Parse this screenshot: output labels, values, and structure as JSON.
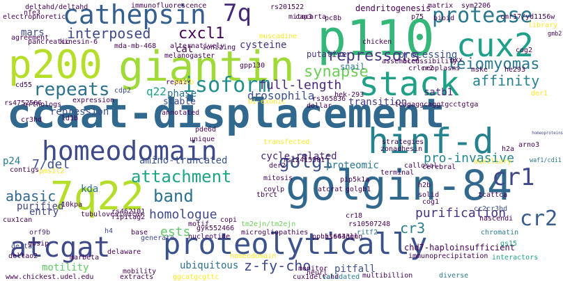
{
  "words": [
    {
      "text": "ccaat-displacement",
      "color": "#31688e"
    },
    {
      "text": "p200",
      "color": "#b5de2b"
    },
    {
      "text": "giantin",
      "color": "#a0da39"
    },
    {
      "text": "p110",
      "color": "#35b779"
    },
    {
      "text": "golgin-84",
      "color": "#31688e"
    },
    {
      "text": "proteolytically",
      "color": "#3b528b"
    },
    {
      "text": "7q22",
      "color": "#b5de2b"
    },
    {
      "text": "stack",
      "color": "#1fa187"
    },
    {
      "text": "hinf-d",
      "color": "#26828e"
    },
    {
      "text": "homeodomain",
      "color": "#3e4989"
    },
    {
      "text": "cathepsin",
      "color": "#355f8d"
    },
    {
      "text": "atcgat",
      "color": "#3e4a89"
    },
    {
      "text": "cux2",
      "color": "#1f9e89"
    },
    {
      "text": "7q",
      "color": "#482878"
    },
    {
      "text": "attachment",
      "color": "#20a486"
    },
    {
      "text": "protease",
      "color": "#2a788e"
    },
    {
      "text": "cr1",
      "color": "#3f4788"
    },
    {
      "text": "cr2",
      "color": "#375b8d"
    },
    {
      "text": "homeoproteins",
      "color": "#414487"
    },
    {
      "text": "isoform",
      "color": "#21908d"
    },
    {
      "text": "repeats",
      "color": "#2c718e"
    },
    {
      "text": "golgi",
      "color": "#3b528b"
    },
    {
      "text": "leiomyomas",
      "color": "#2a788e"
    },
    {
      "text": "repressors",
      "color": "#453781"
    },
    {
      "text": "affinity",
      "color": "#26828e"
    },
    {
      "text": "band",
      "color": "#2d708e"
    },
    {
      "text": "synapse",
      "color": "#6ece58"
    },
    {
      "text": "full-length",
      "color": "#482878"
    },
    {
      "text": "interposed",
      "color": "#3e4989"
    },
    {
      "text": "cxcl1",
      "color": "#440154"
    },
    {
      "text": "7/del",
      "color": "#3b528b"
    },
    {
      "text": "abasic",
      "color": "#31688e"
    },
    {
      "text": "homologue",
      "color": "#3e4989"
    },
    {
      "text": "pro-invasive",
      "color": "#25858e"
    },
    {
      "text": "cycle-related",
      "color": "#482475"
    },
    {
      "text": "purification",
      "color": "#46327e"
    },
    {
      "text": "z-fy-cho",
      "color": "#3e4989"
    },
    {
      "text": "cr3",
      "color": "#287d8e"
    },
    {
      "text": "drosophila",
      "color": "#3b528b"
    },
    {
      "text": "phase",
      "color": "#2d708e"
    },
    {
      "text": "q22",
      "color": "#1fa187"
    },
    {
      "text": "proteomic",
      "color": "#2a788e"
    },
    {
      "text": "ests",
      "color": "#5ec962"
    },
    {
      "text": "ubiquitous",
      "color": "#2c718e"
    },
    {
      "text": "amino-truncated",
      "color": "#3b528b"
    },
    {
      "text": "transition",
      "color": "#453882"
    },
    {
      "text": "cat",
      "color": "#440154"
    },
    {
      "text": "p24",
      "color": "#287c8e"
    },
    {
      "text": "kda",
      "color": "#2d708e"
    },
    {
      "text": "processing",
      "color": "#3b528b"
    },
    {
      "text": "dendritogenesis",
      "color": "#440154"
    },
    {
      "text": "waf1/cdi1",
      "color": "#2a788e"
    },
    {
      "text": "stable",
      "color": "#3e4989"
    },
    {
      "text": "satb1",
      "color": "#482878"
    },
    {
      "text": "purified",
      "color": "#414487"
    },
    {
      "text": "pitfall",
      "color": "#3b528b"
    },
    {
      "text": "motility",
      "color": "#5ec962"
    },
    {
      "text": "mars",
      "color": "#3e4989"
    },
    {
      "text": "repression",
      "color": "#3b528b"
    },
    {
      "text": "cysteine",
      "color": "#46327e"
    },
    {
      "text": "snail",
      "color": "#2a788e"
    },
    {
      "text": "putative",
      "color": "#46327e"
    },
    {
      "text": "entry",
      "color": "#3e4989"
    },
    {
      "text": "homeodomain",
      "color": "#fde725"
    },
    {
      "text": "chd7-haploinsufficient",
      "color": "#440154"
    },
    {
      "text": "multibillion",
      "color": "#440154"
    },
    {
      "text": "diverse",
      "color": "#2a788e"
    },
    {
      "text": "www.chickest.udel.edu",
      "color": "#440154"
    },
    {
      "text": "chromatin",
      "color": "#2a788e"
    },
    {
      "text": "nascendi",
      "color": "#440154"
    },
    {
      "text": "cog1",
      "color": "#440154"
    },
    {
      "text": "cr2cr3hd",
      "color": "#3b528b"
    },
    {
      "text": "interactors",
      "color": "#1fa187"
    },
    {
      "text": "gs15",
      "color": "#1fa187"
    },
    {
      "text": "cux1can",
      "color": "#440154"
    },
    {
      "text": "orf9b",
      "color": "#482878"
    },
    {
      "text": "deltao2",
      "color": "#440154"
    },
    {
      "text": "delta",
      "color": "#3e4989"
    },
    {
      "text": "h4",
      "color": "#3e4989"
    },
    {
      "text": "cdp2",
      "color": "#3e4989"
    },
    {
      "text": "p.his643gln",
      "color": "#440154"
    },
    {
      "text": "ritf2",
      "color": "#2a788e"
    },
    {
      "text": "rs10507248",
      "color": "#440154"
    },
    {
      "text": "cr18",
      "color": "#440154"
    },
    {
      "text": "tm2ejn/tm2ejn",
      "color": "#6ece58"
    },
    {
      "text": "gyk552466",
      "color": "#440154"
    },
    {
      "text": "nucleotide",
      "color": "#440154"
    },
    {
      "text": "microgliopathies",
      "color": "#440154"
    },
    {
      "text": "copi",
      "color": "#440154"
    },
    {
      "text": "motif",
      "color": "#440154"
    },
    {
      "text": "base",
      "color": "#440154"
    },
    {
      "text": "cux1deltahd",
      "color": "#440154"
    },
    {
      "text": "ggcatgcgttc",
      "color": "#fde725"
    },
    {
      "text": "extracts",
      "color": "#440154"
    },
    {
      "text": "mobility",
      "color": "#440154"
    },
    {
      "text": "monitor",
      "color": "#440154"
    },
    {
      "text": "validated",
      "color": "#2a788e"
    },
    {
      "text": "neurl",
      "color": "#440154"
    },
    {
      "text": "generate",
      "color": "#3e4989"
    },
    {
      "text": "marbeta",
      "color": "#440154"
    },
    {
      "text": "transfected",
      "color": "#fde725"
    },
    {
      "text": "p.his643gln",
      "color": "#440154"
    },
    {
      "text": "coylp",
      "color": "#440154"
    },
    {
      "text": "pip5k1a",
      "color": "#440154"
    },
    {
      "text": "mitosis",
      "color": "#440154"
    },
    {
      "text": "rs12415501",
      "color": "#440154"
    },
    {
      "text": "atcrat",
      "color": "#440154"
    },
    {
      "text": "golgb1",
      "color": "#440154"
    },
    {
      "text": "h2b",
      "color": "#440154"
    },
    {
      "text": "h2a",
      "color": "#440154"
    },
    {
      "text": "arno3",
      "color": "#440154"
    },
    {
      "text": "auxiliary",
      "color": "#fde725"
    },
    {
      "text": "cerebral",
      "color": "#440154"
    },
    {
      "text": "callosal",
      "color": "#440154"
    },
    {
      "text": "terminal",
      "color": "#440154"
    },
    {
      "text": "der2",
      "color": "#440154"
    },
    {
      "text": "strategies",
      "color": "#440154"
    },
    {
      "text": "zonadhesin",
      "color": "#440154"
    },
    {
      "text": "rs365836",
      "color": "#440154"
    },
    {
      "text": "hek-293",
      "color": "#440154"
    },
    {
      "text": "tcagaggcaggtgcctgtga",
      "color": "#440154"
    },
    {
      "text": "dollar",
      "color": "#440154"
    },
    {
      "text": "bi-exonic",
      "color": "#fde725"
    },
    {
      "text": "repair",
      "color": "#440154"
    },
    {
      "text": "340kb",
      "color": "#fde725"
    },
    {
      "text": "annotated",
      "color": "#440154"
    },
    {
      "text": "unique",
      "color": "#440154"
    },
    {
      "text": "pde6d",
      "color": "#440154"
    },
    {
      "text": "ld1b",
      "color": "#440154"
    },
    {
      "text": "cr3hd",
      "color": "#440154"
    },
    {
      "text": "rs4752566",
      "color": "#440154"
    },
    {
      "text": "orthologs",
      "color": "#440154"
    },
    {
      "text": "expression",
      "color": "#440154"
    },
    {
      "text": "cd55",
      "color": "#440154"
    },
    {
      "text": "contigs",
      "color": "#440154"
    },
    {
      "text": "pms1l2",
      "color": "#fde725"
    },
    {
      "text": "10kpa",
      "color": "#440154"
    },
    {
      "text": "tubulovesicular",
      "color": "#440154"
    },
    {
      "text": "delaware",
      "color": "#440154"
    },
    {
      "text": "rs462101",
      "color": "#440154"
    },
    {
      "text": "rip1tag2",
      "color": "#440154"
    },
    {
      "text": "mda-mb-468",
      "color": "#440154"
    },
    {
      "text": "alternatively",
      "color": "#440154"
    },
    {
      "text": "ionizing",
      "color": "#440154"
    },
    {
      "text": "muscadine",
      "color": "#fde725"
    },
    {
      "text": "melanogaster",
      "color": "#440154"
    },
    {
      "text": "kinesin-6",
      "color": "#440154"
    },
    {
      "text": "pancreatic",
      "color": "#440154"
    },
    {
      "text": "electrophoretic",
      "color": "#440154"
    },
    {
      "text": "agreement",
      "color": "#440154"
    },
    {
      "text": "nfe3",
      "color": "#440154"
    },
    {
      "text": "deltahd/deltahd",
      "color": "#440154"
    },
    {
      "text": "immunofluorescence",
      "color": "#440154"
    },
    {
      "text": "rs201522",
      "color": "#440154"
    },
    {
      "text": "cap3",
      "color": "#440154"
    },
    {
      "text": "matrix",
      "color": "#440154"
    },
    {
      "text": "sym2206",
      "color": "#440154"
    },
    {
      "text": "cmr17/yd1156w",
      "color": "#440154"
    },
    {
      "text": "library",
      "color": "#fde725"
    },
    {
      "text": "gmb2",
      "color": "#440154"
    },
    {
      "text": "cog2",
      "color": "#440154"
    },
    {
      "text": "gxx",
      "color": "#440154"
    },
    {
      "text": "mske",
      "color": "#440154"
    },
    {
      "text": "he293",
      "color": "#440154"
    },
    {
      "text": "der1",
      "color": "#fde725"
    },
    {
      "text": "accessibility",
      "color": "#440154"
    },
    {
      "text": "crlcr2",
      "color": "#440154"
    },
    {
      "text": "neoplasms",
      "color": "#440154"
    },
    {
      "text": "assembled",
      "color": "#440154"
    },
    {
      "text": "bioid",
      "color": "#440154"
    },
    {
      "text": "chicken",
      "color": "#440154"
    },
    {
      "text": "pc8b",
      "color": "#440154"
    },
    {
      "text": "mitocarta",
      "color": "#440154"
    },
    {
      "text": "gpp130",
      "color": "#440154"
    },
    {
      "text": "p75",
      "color": "#440154"
    },
    {
      "text": "tcattca",
      "color": "#440154"
    },
    {
      "text": "tbrct",
      "color": "#440154"
    },
    {
      "text": "solid",
      "color": "#440154"
    },
    {
      "text": "immunoprecipitation",
      "color": "#440154"
    },
    {
      "text": "gosip",
      "color": "#440154"
    }
  ]
}
